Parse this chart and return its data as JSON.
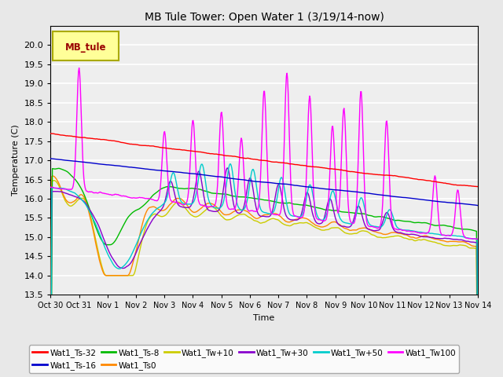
{
  "title": "MB Tule Tower: Open Water 1 (3/19/14-now)",
  "xlabel": "Time",
  "ylabel": "Temperature (C)",
  "ylim": [
    13.5,
    20.5
  ],
  "yticks": [
    13.5,
    14.0,
    14.5,
    15.0,
    15.5,
    16.0,
    16.5,
    17.0,
    17.5,
    18.0,
    18.5,
    19.0,
    19.5,
    20.0
  ],
  "xtick_labels": [
    "Oct 30",
    "Oct 31",
    "Nov 1",
    "Nov 2",
    "Nov 3",
    "Nov 4",
    "Nov 5",
    "Nov 6",
    "Nov 7",
    "Nov 8",
    "Nov 9",
    "Nov 10",
    "Nov 11",
    "Nov 12",
    "Nov 13",
    "Nov 14"
  ],
  "colors": {
    "Wat1_Ts-32": "#ff0000",
    "Wat1_Ts-16": "#0000cc",
    "Wat1_Ts-8": "#00bb00",
    "Wat1_Ts0": "#ff8800",
    "Wat1_Tw+10": "#cccc00",
    "Wat1_Tw+30": "#8800cc",
    "Wat1_Tw+50": "#00cccc",
    "Wat1_Tw100": "#ff00ff"
  },
  "legend_label": "MB_tule",
  "legend_facecolor": "#ffff99",
  "legend_edgecolor": "#aaaa00",
  "legend_textcolor": "#990000",
  "background_color": "#e8e8e8",
  "plot_bg_color": "#eeeeee",
  "grid_color": "#ffffff",
  "n_days": 15,
  "pts_per_day": 48
}
